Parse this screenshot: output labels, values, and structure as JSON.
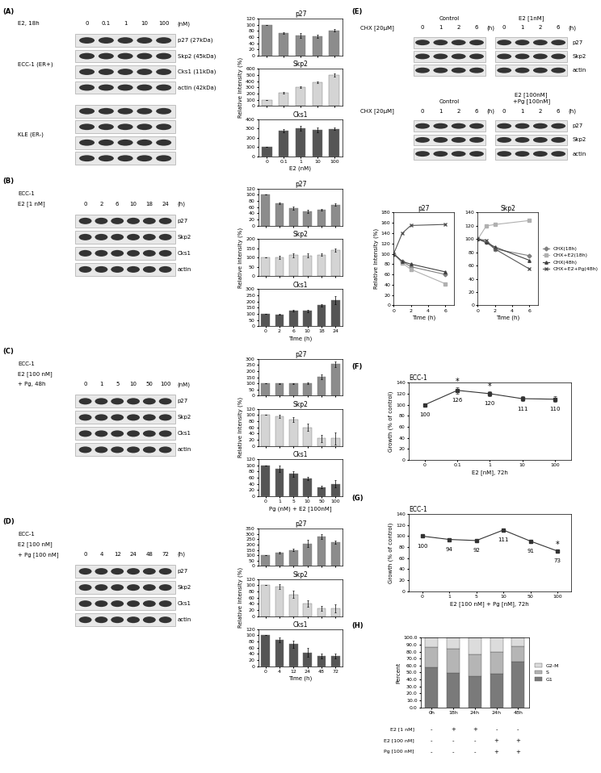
{
  "panel_labels": [
    "(A)",
    "(B)",
    "(C)",
    "(D)",
    "(E)",
    "(F)",
    "(G)",
    "(H)"
  ],
  "blots": [
    {
      "header": [
        "E2, 18h"
      ],
      "lanes": [
        "0",
        "0.1",
        "1",
        "10",
        "100"
      ],
      "unit": "(nM)",
      "groups": [
        {
          "cell": "ECC-1 (ER+)",
          "rows": [
            "p27 (27kDa)",
            "Skp2 (45kDa)",
            "Cks1 (11kDa)",
            "actin (42kDa)"
          ]
        },
        {
          "cell": "KLE (ER-)",
          "n_rows": 4
        }
      ]
    },
    {
      "header": [
        "ECC-1",
        "E2 [1 nM]"
      ],
      "lanes": [
        "0",
        "2",
        "6",
        "10",
        "18",
        "24"
      ],
      "unit": "(h)",
      "groups": [
        {
          "rows": [
            "p27",
            "Skp2",
            "Cks1",
            "actin"
          ]
        }
      ]
    },
    {
      "header": [
        "ECC-1",
        "E2 [100 nM]",
        "+ Pg, 48h"
      ],
      "lanes": [
        "0",
        "1",
        "5",
        "10",
        "50",
        "100"
      ],
      "unit": "(nM)",
      "groups": [
        {
          "rows": [
            "p27",
            "Skp2",
            "Cks1",
            "actin"
          ]
        }
      ]
    },
    {
      "header": [
        "ECC-1",
        "E2 [100 nM]",
        "+ Pg [100 nM]"
      ],
      "lanes": [
        "0",
        "4",
        "12",
        "24",
        "48",
        "72"
      ],
      "unit": "(h)",
      "groups": [
        {
          "rows": [
            "p27",
            "Skp2",
            "Cks1",
            "actin"
          ]
        }
      ]
    }
  ],
  "chase": {
    "treatment": "CHX [20μM]",
    "lanes": [
      "0",
      "1",
      "2",
      "6"
    ],
    "unit": "(h)",
    "rows": [
      "p27",
      "Skp2",
      "actin"
    ],
    "conditions": [
      [
        "Control",
        "E2 [1nM]"
      ],
      [
        "Control",
        "E2 [100nM]\n+Pg [100nM]"
      ]
    ]
  },
  "chart_data": [
    {
      "type": "bar",
      "title": "p27",
      "categories": [
        "0",
        "0.1",
        "1",
        "10",
        "100"
      ],
      "values": [
        100,
        73,
        65,
        63,
        82
      ],
      "errors": [
        0,
        2,
        7,
        6,
        4
      ],
      "color": "#8c8c8c",
      "ylim": [
        0,
        120
      ],
      "yticks": [
        0,
        20,
        40,
        60,
        80,
        100,
        120
      ],
      "tick_labels": "y"
    },
    {
      "type": "bar",
      "title": "Skp2",
      "categories": [
        "0",
        "0.1",
        "1",
        "10",
        "100"
      ],
      "values": [
        100,
        210,
        305,
        380,
        500
      ],
      "errors": [
        0,
        10,
        12,
        10,
        30
      ],
      "color": "#d4d4d4",
      "ylim": [
        0,
        600
      ],
      "yticks": [
        0,
        100,
        200,
        300,
        400,
        500,
        600
      ],
      "ylabel": "Relative Intensity (%)",
      "tick_labels": "y"
    },
    {
      "type": "bar",
      "title": "Cks1",
      "categories": [
        "0",
        "0.1",
        "1",
        "10",
        "100"
      ],
      "values": [
        100,
        275,
        300,
        285,
        295
      ],
      "errors": [
        0,
        20,
        25,
        25,
        15
      ],
      "color": "#555555",
      "ylim": [
        0,
        400
      ],
      "yticks": [
        0,
        100,
        200,
        300,
        400
      ],
      "xlabel": "E2 (nM)"
    },
    {
      "type": "bar",
      "title": "p27",
      "categories": [
        "0",
        "2",
        "6",
        "10",
        "18",
        "24"
      ],
      "values": [
        100,
        73,
        57,
        47,
        52,
        68
      ],
      "errors": [
        0,
        3,
        6,
        5,
        3,
        4
      ],
      "color": "#8c8c8c",
      "ylim": [
        0,
        120
      ],
      "yticks": [
        0,
        20,
        40,
        60,
        80,
        100,
        120
      ],
      "tick_labels": "y"
    },
    {
      "type": "bar",
      "title": "Skp2",
      "categories": [
        "0",
        "2",
        "6",
        "10",
        "18",
        "24"
      ],
      "values": [
        100,
        100,
        112,
        110,
        115,
        140
      ],
      "errors": [
        0,
        8,
        10,
        12,
        8,
        10
      ],
      "color": "#d4d4d4",
      "ylim": [
        0,
        200
      ],
      "yticks": [
        0,
        50,
        100,
        150,
        200
      ],
      "ylabel": "Relative Intensity (%)",
      "tick_labels": "y"
    },
    {
      "type": "bar",
      "title": "Cks1",
      "categories": [
        "0",
        "2",
        "6",
        "10",
        "18",
        "24"
      ],
      "values": [
        100,
        95,
        125,
        125,
        170,
        210
      ],
      "errors": [
        0,
        5,
        5,
        10,
        10,
        35
      ],
      "color": "#555555",
      "ylim": [
        0,
        300
      ],
      "yticks": [
        0,
        50,
        100,
        150,
        200,
        250,
        300
      ],
      "xlabel": "Time (h)"
    },
    {
      "type": "bar",
      "title": "p27",
      "categories": [
        "0",
        "1",
        "5",
        "10",
        "50",
        "100"
      ],
      "values": [
        100,
        100,
        100,
        100,
        155,
        255
      ],
      "errors": [
        0,
        3,
        3,
        5,
        20,
        25
      ],
      "color": "#8c8c8c",
      "ylim": [
        0,
        300
      ],
      "yticks": [
        0,
        50,
        100,
        150,
        200,
        250,
        300
      ],
      "tick_labels": "y"
    },
    {
      "type": "bar",
      "title": "Skp2",
      "categories": [
        "0",
        "1",
        "5",
        "10",
        "50",
        "100"
      ],
      "values": [
        100,
        95,
        85,
        60,
        25,
        25
      ],
      "errors": [
        0,
        5,
        8,
        12,
        12,
        20
      ],
      "color": "#d4d4d4",
      "ylim": [
        0,
        120
      ],
      "yticks": [
        0,
        20,
        40,
        60,
        80,
        100,
        120
      ],
      "ylabel": "Relative Intensity (%)",
      "tick_labels": "y"
    },
    {
      "type": "bar",
      "title": "Cks1",
      "categories": [
        "0",
        "1",
        "5",
        "10",
        "50",
        "100"
      ],
      "values": [
        100,
        88,
        72,
        58,
        30,
        40
      ],
      "errors": [
        0,
        10,
        8,
        5,
        5,
        12
      ],
      "color": "#555555",
      "ylim": [
        0,
        120
      ],
      "yticks": [
        0,
        20,
        40,
        60,
        80,
        100,
        120
      ],
      "xlabel": "Pg (nM) + E2 [100nM]"
    },
    {
      "type": "bar",
      "title": "p27",
      "categories": [
        "0",
        "4",
        "12",
        "24",
        "48",
        "72"
      ],
      "values": [
        100,
        125,
        150,
        210,
        275,
        220
      ],
      "errors": [
        0,
        10,
        12,
        35,
        25,
        15
      ],
      "color": "#8c8c8c",
      "ylim": [
        0,
        350
      ],
      "yticks": [
        0,
        50,
        100,
        150,
        200,
        250,
        300,
        350
      ],
      "tick_labels": "y"
    },
    {
      "type": "bar",
      "title": "Skp2",
      "categories": [
        "0",
        "4",
        "12",
        "24",
        "48",
        "72"
      ],
      "values": [
        100,
        95,
        70,
        40,
        25,
        25
      ],
      "errors": [
        0,
        8,
        12,
        10,
        8,
        12
      ],
      "color": "#d4d4d4",
      "ylim": [
        0,
        120
      ],
      "yticks": [
        0,
        20,
        40,
        60,
        80,
        100,
        120
      ],
      "ylabel": "Relative Intensity (%)",
      "tick_labels": "y"
    },
    {
      "type": "bar",
      "title": "Cks1",
      "categories": [
        "0",
        "4",
        "12",
        "24",
        "48",
        "72"
      ],
      "values": [
        100,
        85,
        72,
        45,
        33,
        33
      ],
      "errors": [
        0,
        8,
        12,
        15,
        8,
        8
      ],
      "color": "#555555",
      "ylim": [
        0,
        120
      ],
      "yticks": [
        0,
        20,
        40,
        60,
        80,
        100,
        120
      ],
      "xlabel": "Time (h)"
    },
    {
      "type": "line",
      "title": "p27",
      "x": [
        0,
        1,
        2,
        6
      ],
      "xlim": [
        0,
        7
      ],
      "xticks": [
        0,
        2,
        4,
        6
      ],
      "ylim": [
        0,
        180
      ],
      "yticks": [
        0,
        20,
        40,
        60,
        80,
        100,
        120,
        140,
        160,
        180
      ],
      "ylabel": "Relative Intensity (%)",
      "xlabel": "Time (h)",
      "series": [
        {
          "name": "CHX(18h)",
          "color": "#7f7f7f",
          "marker": "diamond",
          "values": [
            100,
            85,
            75,
            60
          ]
        },
        {
          "name": "CHX+E2(18h)",
          "color": "#b0b0b0",
          "marker": "square",
          "values": [
            100,
            82,
            70,
            42
          ]
        },
        {
          "name": "CHX(48h)",
          "color": "#404040",
          "marker": "triangle",
          "values": [
            100,
            85,
            80,
            65
          ]
        },
        {
          "name": "CHX+E2+Pg(48h)",
          "color": "#555555",
          "marker": "x",
          "values": [
            100,
            140,
            155,
            157
          ]
        }
      ]
    },
    {
      "type": "line",
      "title": "Skp2",
      "x": [
        0,
        1,
        2,
        6
      ],
      "xlim": [
        0,
        7
      ],
      "xticks": [
        0,
        2,
        4,
        6
      ],
      "ylim": [
        0,
        140
      ],
      "yticks": [
        0,
        20,
        40,
        60,
        80,
        100,
        120,
        140
      ],
      "xlabel": "Time (h)",
      "legend": "right",
      "series": [
        {
          "name": "CHX(18h)",
          "color": "#7f7f7f",
          "marker": "diamond",
          "values": [
            100,
            95,
            85,
            75
          ]
        },
        {
          "name": "CHX+E2(18h)",
          "color": "#b0b0b0",
          "marker": "square",
          "values": [
            100,
            120,
            122,
            128
          ]
        },
        {
          "name": "CHX(48h)",
          "color": "#404040",
          "marker": "triangle",
          "values": [
            100,
            95,
            88,
            68
          ]
        },
        {
          "name": "CHX+E2+Pg(48h)",
          "color": "#555555",
          "marker": "x",
          "values": [
            100,
            98,
            85,
            55
          ]
        }
      ]
    },
    {
      "type": "line",
      "title": "ECC-1",
      "categories": [
        "0",
        "0.1",
        "1",
        "10",
        "100"
      ],
      "values": [
        100,
        126,
        120,
        111,
        110
      ],
      "errors": [
        3,
        6,
        4,
        5,
        5
      ],
      "ylim": [
        0,
        140
      ],
      "yticks": [
        0,
        20,
        40,
        60,
        80,
        100,
        120,
        140
      ],
      "ylabel": "Growth (% of control)",
      "xlabel": "E2 [nM], 72h",
      "color": "#333333",
      "marker": "square",
      "data_labels": true,
      "annotations": [
        {
          "x": "0.1",
          "text": "*"
        },
        {
          "x": "1",
          "text": "*"
        }
      ]
    },
    {
      "type": "line",
      "title": "ECC-1",
      "categories": [
        "0",
        "1",
        "5",
        "10",
        "50",
        "100"
      ],
      "values": [
        100,
        94,
        92,
        111,
        91,
        73
      ],
      "errors": [
        2,
        2,
        2,
        2,
        2,
        2
      ],
      "ylim": [
        0,
        140
      ],
      "yticks": [
        0,
        20,
        40,
        60,
        80,
        100,
        120,
        140
      ],
      "ylabel": "Growth (% of control)",
      "xlabel": "E2 [100 nM] + Pg [nM], 72h",
      "color": "#333333",
      "marker": "square",
      "data_labels": true,
      "annotations": [
        {
          "x": "100",
          "text": "*"
        }
      ]
    },
    {
      "type": "bar",
      "stacked": true,
      "categories": [
        "0h",
        "18h",
        "24h",
        "24h",
        "48h"
      ],
      "series": [
        {
          "name": "G1",
          "color": "#7a7a7a",
          "values": [
            57,
            49,
            45,
            48,
            66
          ]
        },
        {
          "name": "S",
          "color": "#b5b5b5",
          "values": [
            29,
            35,
            31,
            31,
            22
          ]
        },
        {
          "name": "G2-M",
          "color": "#dcdcdc",
          "values": [
            14,
            16,
            24,
            21,
            12
          ]
        }
      ],
      "ylim": [
        0,
        100
      ],
      "yticks": [
        {
          "value": 0,
          "label": "0.0"
        },
        {
          "value": 10,
          "label": "10.0"
        },
        {
          "value": 20,
          "label": "20.0"
        },
        {
          "value": 30,
          "label": "30.0"
        },
        {
          "value": 40,
          "label": "40.0"
        },
        {
          "value": 50,
          "label": "50.0"
        },
        {
          "value": 60,
          "label": "60.0"
        },
        {
          "value": 70,
          "label": "70.0"
        },
        {
          "value": 80,
          "label": "80.0"
        },
        {
          "value": 90,
          "label": "90.0"
        },
        {
          "value": 100,
          "label": "100.0"
        }
      ],
      "ylabel": "Percent",
      "legend": "right",
      "conditions": [
        {
          "name": "E2 [1 nM]",
          "values": [
            "-",
            "+",
            "+",
            "-",
            "-"
          ]
        },
        {
          "name": "E2 [100 nM]",
          "values": [
            "-",
            "-",
            "-",
            "+",
            "+"
          ]
        },
        {
          "name": "Pg [100 nM]",
          "values": [
            "-",
            "-",
            "-",
            "+",
            "+"
          ]
        }
      ]
    }
  ]
}
